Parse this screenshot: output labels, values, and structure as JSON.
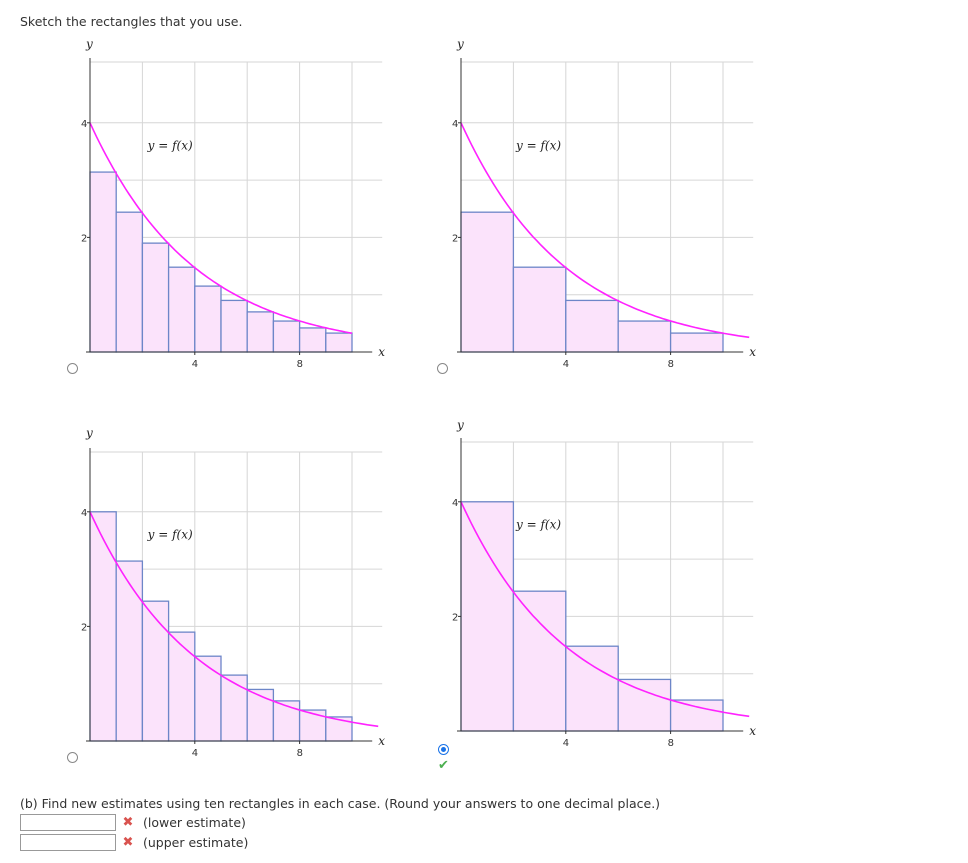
{
  "prompt": "Sketch the rectangles that you use.",
  "axis": {
    "x_label": "x",
    "y_label": "y",
    "curve_label": "y = f(x)",
    "x_ticks": [
      "4",
      "8"
    ],
    "y_ticks": [
      "2",
      "4"
    ]
  },
  "colors": {
    "curve": "#ff22ff",
    "rect_fill": "#fbe3fb",
    "rect_stroke": "#6d86c8",
    "grid": "#d6d6d6",
    "radio_selected": "#1a73e8",
    "check": "#4caf50",
    "wrong": "#d9534f"
  },
  "chart_data": [
    {
      "type": "bar",
      "x": [
        0,
        1,
        2,
        3,
        4,
        5,
        6,
        7,
        8,
        9
      ],
      "bar_width": 1,
      "values": [
        3.14,
        2.44,
        1.9,
        1.48,
        1.15,
        0.9,
        0.7,
        0.54,
        0.42,
        0.33
      ],
      "xlim": [
        0,
        11
      ],
      "ylim": [
        0,
        4.9
      ],
      "curve_x": [
        0,
        10
      ],
      "grid": true
    },
    {
      "type": "bar",
      "x": [
        0,
        2,
        4,
        6,
        8
      ],
      "bar_width": 2,
      "values": [
        2.44,
        1.48,
        0.9,
        0.54,
        0.33
      ],
      "xlim": [
        0,
        11
      ],
      "ylim": [
        0,
        4.9
      ],
      "curve_x": [
        0,
        11
      ],
      "grid": true
    },
    {
      "type": "bar",
      "x": [
        0,
        1,
        2,
        3,
        4,
        5,
        6,
        7,
        8,
        9
      ],
      "bar_width": 1,
      "values": [
        4.0,
        3.14,
        2.44,
        1.9,
        1.48,
        1.15,
        0.9,
        0.7,
        0.54,
        0.42
      ],
      "xlim": [
        0,
        11
      ],
      "ylim": [
        0,
        4.9
      ],
      "curve_x": [
        0,
        11
      ],
      "grid": true
    },
    {
      "type": "bar",
      "x": [
        0,
        2,
        4,
        6,
        8
      ],
      "bar_width": 2,
      "values": [
        4.0,
        2.44,
        1.48,
        0.9,
        0.54
      ],
      "xlim": [
        0,
        11
      ],
      "ylim": [
        0,
        4.9
      ],
      "curve_x": [
        0,
        11
      ],
      "grid": true
    }
  ],
  "options": [
    {
      "selected": false,
      "correct": false
    },
    {
      "selected": false,
      "correct": false
    },
    {
      "selected": false,
      "correct": false
    },
    {
      "selected": true,
      "correct": true,
      "feedback_icon": "checkmark-icon"
    }
  ],
  "part_b": {
    "question": "(b) Find new estimates using ten rectangles in each case. (Round your answers to one decimal place.)",
    "answers": [
      {
        "value": "",
        "status_icon": "x-mark-icon",
        "label": "(lower estimate)"
      },
      {
        "value": "",
        "status_icon": "x-mark-icon",
        "label": "(upper estimate)"
      }
    ]
  }
}
